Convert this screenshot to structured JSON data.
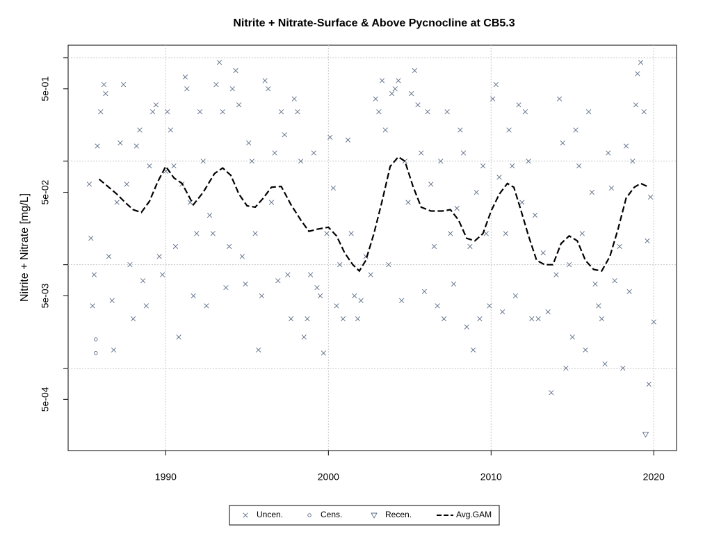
{
  "chart_data": {
    "type": "scatter",
    "title": "Nitrite + Nitrate-Surface & Above Pycnocline at CB5.3",
    "y_label": "Nitrite + Nitrate [mg/L]",
    "log_y": true,
    "grid": true,
    "legend_position": "bottom",
    "xlim": [
      1984,
      2021.4
    ],
    "xticks": [
      1990,
      2000,
      2010,
      2020
    ],
    "ylim": [
      0.00016,
      1.32
    ],
    "yticks": [
      {
        "value": 0.5,
        "label": "5e-01"
      },
      {
        "value": 0.05,
        "label": "5e-02"
      },
      {
        "value": 0.005,
        "label": "5e-03"
      },
      {
        "value": 0.0005,
        "label": "5e-04"
      }
    ],
    "ygrid": [
      1,
      0.1,
      0.01,
      0.001
    ],
    "series": [
      {
        "name": "Uncen.",
        "color": "#5a6b86",
        "marker": "x",
        "x": [
          1985.3,
          1985.4,
          1985.5,
          1985.6,
          1985.8,
          1986.0,
          1986.2,
          1986.3,
          1986.5,
          1986.7,
          1986.8,
          1987.0,
          1987.2,
          1987.4,
          1987.6,
          1987.8,
          1988.0,
          1988.2,
          1988.4,
          1988.6,
          1988.8,
          1989.0,
          1989.2,
          1989.4,
          1989.6,
          1989.8,
          1990.0,
          1990.1,
          1990.3,
          1990.5,
          1990.6,
          1990.8,
          1991.0,
          1991.2,
          1991.3,
          1991.5,
          1991.7,
          1991.9,
          1992.1,
          1992.3,
          1992.5,
          1992.7,
          1992.9,
          1993.1,
          1993.3,
          1993.5,
          1993.7,
          1993.9,
          1994.1,
          1994.3,
          1994.5,
          1994.7,
          1994.9,
          1995.1,
          1995.3,
          1995.5,
          1995.7,
          1995.9,
          1996.1,
          1996.3,
          1996.5,
          1996.7,
          1996.9,
          1997.1,
          1997.3,
          1997.5,
          1997.7,
          1997.9,
          1998.1,
          1998.3,
          1998.5,
          1998.7,
          1998.9,
          1999.1,
          1999.3,
          1999.5,
          1999.7,
          1999.9,
          2000.1,
          2000.3,
          2000.5,
          2000.7,
          2000.9,
          2001.2,
          2001.4,
          2001.6,
          2001.8,
          2002.0,
          2002.3,
          2002.6,
          2002.9,
          2003.1,
          2003.3,
          2003.5,
          2003.7,
          2003.9,
          2004.1,
          2004.3,
          2004.5,
          2004.7,
          2004.9,
          2005.1,
          2005.3,
          2005.5,
          2005.7,
          2005.9,
          2006.1,
          2006.3,
          2006.5,
          2006.7,
          2006.9,
          2007.1,
          2007.3,
          2007.5,
          2007.7,
          2007.9,
          2008.1,
          2008.3,
          2008.5,
          2008.7,
          2008.9,
          2009.1,
          2009.3,
          2009.5,
          2009.7,
          2009.9,
          2010.1,
          2010.3,
          2010.5,
          2010.7,
          2010.9,
          2011.1,
          2011.3,
          2011.5,
          2011.7,
          2011.9,
          2012.1,
          2012.3,
          2012.5,
          2012.7,
          2012.9,
          2013.2,
          2013.5,
          2013.7,
          2014.0,
          2014.2,
          2014.4,
          2014.6,
          2014.8,
          2015.0,
          2015.2,
          2015.4,
          2015.6,
          2015.8,
          2016.0,
          2016.2,
          2016.4,
          2016.6,
          2016.8,
          2017.0,
          2017.2,
          2017.4,
          2017.6,
          2017.9,
          2018.1,
          2018.3,
          2018.5,
          2018.7,
          2018.9,
          2019.0,
          2019.2,
          2019.4,
          2019.6,
          2019.7,
          2019.8,
          2020.0
        ],
        "values": [
          0.06,
          0.018,
          0.004,
          0.008,
          0.14,
          0.3,
          0.55,
          0.45,
          0.012,
          0.0045,
          0.0015,
          0.04,
          0.15,
          0.55,
          0.06,
          0.01,
          0.003,
          0.14,
          0.2,
          0.007,
          0.004,
          0.09,
          0.3,
          0.35,
          0.012,
          0.008,
          0.08,
          0.3,
          0.2,
          0.09,
          0.015,
          0.002,
          0.06,
          0.65,
          0.5,
          0.04,
          0.005,
          0.02,
          0.3,
          0.1,
          0.004,
          0.03,
          0.02,
          0.55,
          0.9,
          0.3,
          0.006,
          0.015,
          0.5,
          0.75,
          0.35,
          0.012,
          0.0065,
          0.15,
          0.1,
          0.02,
          0.0015,
          0.005,
          0.6,
          0.5,
          0.04,
          0.12,
          0.007,
          0.3,
          0.18,
          0.008,
          0.003,
          0.4,
          0.3,
          0.1,
          0.002,
          0.003,
          0.008,
          0.12,
          0.006,
          0.005,
          0.0014,
          0.02,
          0.17,
          0.055,
          0.004,
          0.01,
          0.003,
          0.16,
          0.02,
          0.005,
          0.003,
          0.0045,
          0.012,
          0.008,
          0.4,
          0.3,
          0.6,
          0.2,
          0.01,
          0.45,
          0.5,
          0.6,
          0.0045,
          0.1,
          0.04,
          0.45,
          0.75,
          0.35,
          0.12,
          0.0055,
          0.3,
          0.06,
          0.015,
          0.004,
          0.1,
          0.003,
          0.3,
          0.02,
          0.0065,
          0.035,
          0.2,
          0.12,
          0.0025,
          0.015,
          0.0015,
          0.05,
          0.003,
          0.09,
          0.02,
          0.004,
          0.4,
          0.55,
          0.07,
          0.0035,
          0.02,
          0.2,
          0.09,
          0.005,
          0.35,
          0.04,
          0.3,
          0.1,
          0.003,
          0.03,
          0.003,
          0.013,
          0.0035,
          0.00058,
          0.008,
          0.4,
          0.15,
          0.001,
          0.01,
          0.002,
          0.2,
          0.09,
          0.02,
          0.0015,
          0.3,
          0.05,
          0.0065,
          0.004,
          0.003,
          0.0011,
          0.12,
          0.055,
          0.007,
          0.015,
          0.001,
          0.14,
          0.0055,
          0.1,
          0.35,
          0.7,
          0.9,
          0.3,
          0.017,
          0.0007,
          0.045,
          0.0028
        ]
      },
      {
        "name": "Cens.",
        "color": "#5a6b86",
        "marker": "circle",
        "x": [
          1985.7,
          1985.7
        ],
        "values": [
          0.0019,
          0.0014
        ]
      },
      {
        "name": "Recen.",
        "color": "#5a6b86",
        "marker": "triangle",
        "x": [
          2019.5
        ],
        "values": [
          0.00023
        ]
      },
      {
        "name": "Avg.GAM",
        "color": "#000000",
        "marker": "dashed-line",
        "x": [
          1985.9,
          1986.5,
          1987.0,
          1987.5,
          1988.0,
          1988.5,
          1989.0,
          1989.5,
          1990.0,
          1990.5,
          1991.0,
          1991.7,
          1992.3,
          1993.0,
          1993.5,
          1994.0,
          1994.5,
          1995.0,
          1995.5,
          1996.0,
          1996.5,
          1997.1,
          1997.7,
          1998.3,
          1998.8,
          1999.3,
          2000.0,
          2000.5,
          2001.0,
          2001.5,
          2001.9,
          2002.3,
          2002.8,
          2003.3,
          2003.8,
          2004.3,
          2004.7,
          2005.2,
          2005.7,
          2006.3,
          2007.0,
          2007.5,
          2008.0,
          2008.5,
          2009.0,
          2009.5,
          2010.0,
          2010.5,
          2011.0,
          2011.4,
          2011.8,
          2012.3,
          2012.8,
          2013.3,
          2013.8,
          2014.3,
          2014.8,
          2015.3,
          2015.8,
          2016.3,
          2016.8,
          2017.3,
          2017.8,
          2018.3,
          2018.8,
          2019.2,
          2019.6
        ],
        "values": [
          0.067,
          0.056,
          0.048,
          0.04,
          0.034,
          0.032,
          0.041,
          0.063,
          0.089,
          0.069,
          0.061,
          0.038,
          0.05,
          0.076,
          0.086,
          0.073,
          0.048,
          0.037,
          0.036,
          0.044,
          0.056,
          0.057,
          0.038,
          0.027,
          0.021,
          0.022,
          0.023,
          0.019,
          0.013,
          0.01,
          0.0087,
          0.011,
          0.02,
          0.041,
          0.089,
          0.11,
          0.1,
          0.057,
          0.036,
          0.033,
          0.033,
          0.034,
          0.027,
          0.018,
          0.017,
          0.02,
          0.033,
          0.048,
          0.061,
          0.056,
          0.035,
          0.019,
          0.011,
          0.01,
          0.01,
          0.016,
          0.019,
          0.017,
          0.011,
          0.009,
          0.0087,
          0.012,
          0.022,
          0.044,
          0.056,
          0.061,
          0.057
        ]
      }
    ]
  }
}
